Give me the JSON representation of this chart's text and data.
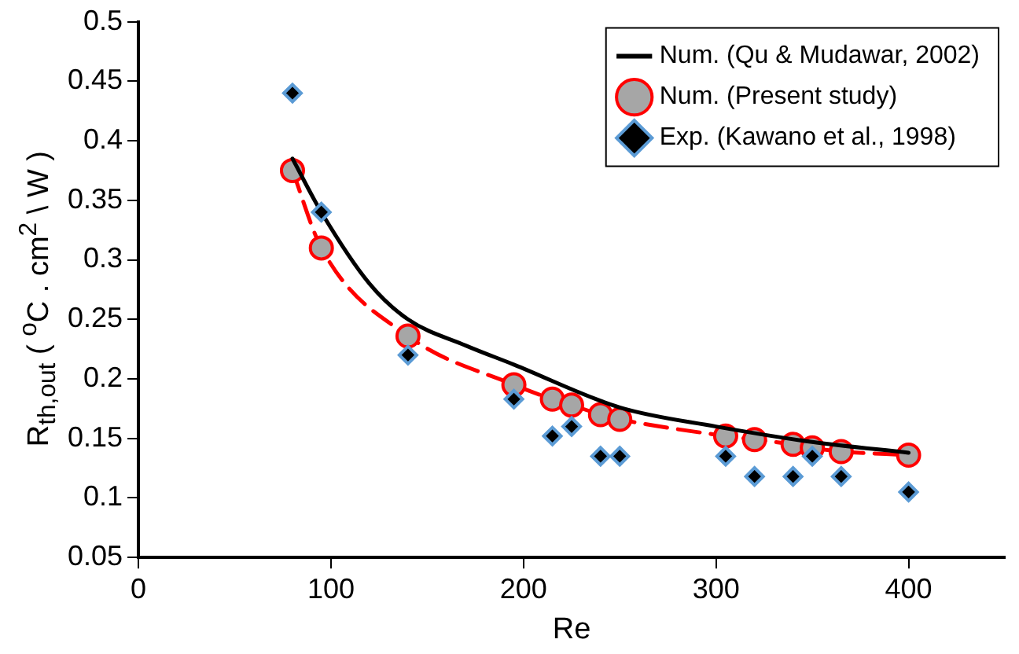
{
  "chart_data": {
    "type": "line",
    "xlabel": "Re",
    "ylabel": "R$_{th,out}$ ( $^{o}$C . cm$^{2}$ \\ W )",
    "xlim": [
      0,
      450
    ],
    "xticks": [
      0,
      100,
      200,
      300,
      400
    ],
    "ylim": [
      0.05,
      0.5
    ],
    "yticks": [
      0.05,
      0.1,
      0.15,
      0.2,
      0.25,
      0.3,
      0.35,
      0.4,
      0.45,
      0.5
    ],
    "grid": false,
    "legend": "top right",
    "series": [
      {
        "name": "Num. (Qu & Mudawar, 2002)",
        "color": "#000000",
        "marker": "none",
        "line_style": "solid",
        "x": [
          80,
          95,
          120,
          140,
          170,
          195,
          250,
          300,
          350,
          400
        ],
        "values": [
          0.385,
          0.34,
          0.28,
          0.25,
          0.228,
          0.212,
          0.176,
          0.16,
          0.147,
          0.138
        ]
      },
      {
        "name": "Num. (Present study)",
        "color": "#ff0000",
        "marker": "circle",
        "line_style": "dashed",
        "x": [
          80,
          95,
          140,
          195,
          215,
          225,
          240,
          250,
          305,
          320,
          340,
          350,
          365,
          400
        ],
        "values": [
          0.375,
          0.31,
          0.236,
          0.195,
          0.183,
          0.178,
          0.17,
          0.166,
          0.152,
          0.149,
          0.145,
          0.142,
          0.139,
          0.136
        ]
      },
      {
        "name": "Exp. (Kawano et al., 1998)",
        "type": "scatter",
        "color": "#000000",
        "marker": "diamond",
        "x": [
          80,
          95,
          140,
          195,
          215,
          225,
          240,
          250,
          305,
          320,
          340,
          350,
          365,
          400
        ],
        "values": [
          0.44,
          0.34,
          0.22,
          0.183,
          0.152,
          0.16,
          0.135,
          0.135,
          0.135,
          0.118,
          0.118,
          0.135,
          0.118,
          0.105
        ]
      }
    ]
  }
}
